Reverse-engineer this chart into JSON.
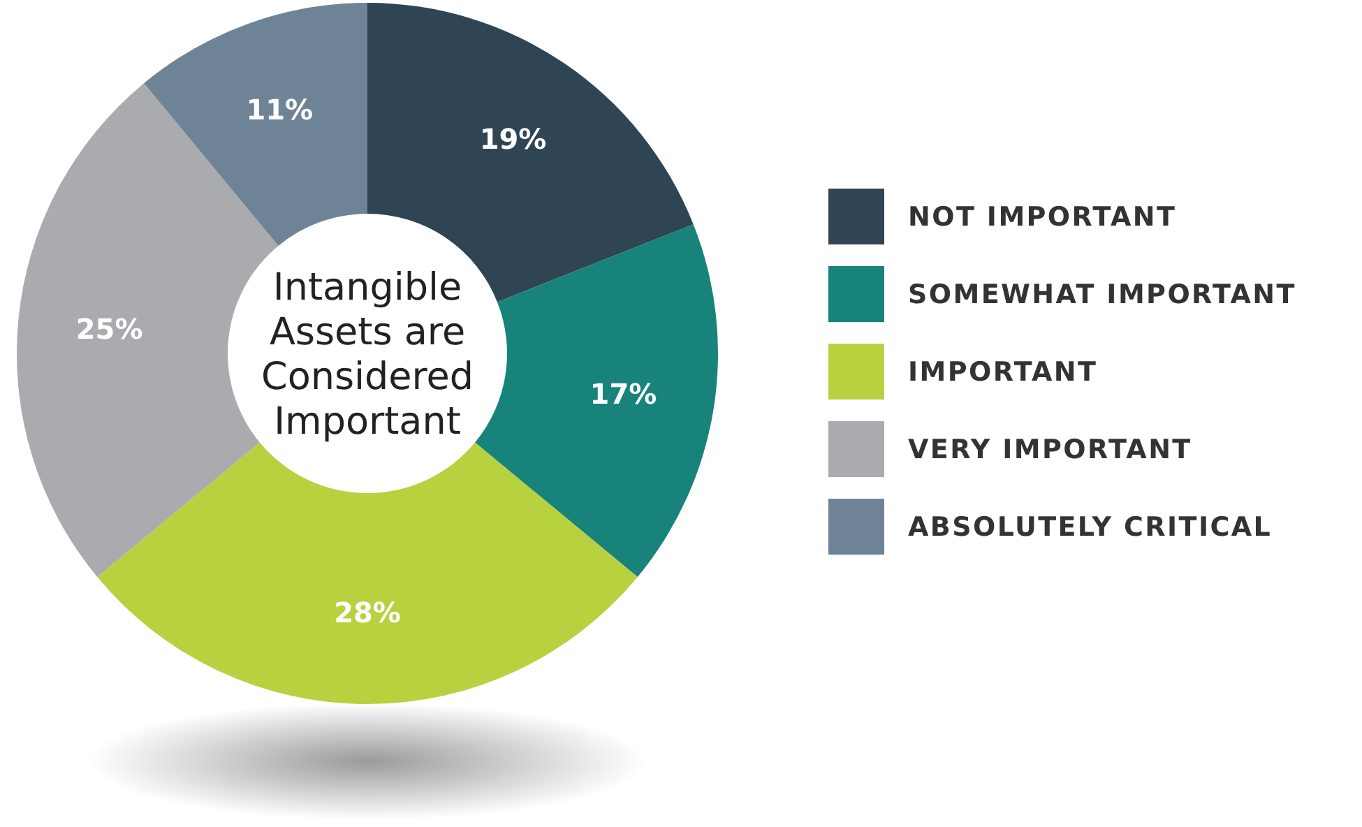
{
  "chart_data": {
    "type": "donut",
    "title": "Intangible Assets are Considered Important",
    "categories": [
      "NOT IMPORTANT",
      "SOMEWHAT IMPORTANT",
      "IMPORTANT",
      "VERY IMPORTANT",
      "ABSOLUTELY CRITICAL"
    ],
    "values": [
      19,
      17,
      28,
      25,
      11
    ],
    "colors": [
      "#2f4553",
      "#17837b",
      "#b8d13f",
      "#a9abaf",
      "#6f8396"
    ],
    "value_labels": [
      "19%",
      "17%",
      "28%",
      "25%",
      "11%"
    ],
    "legend": "right"
  }
}
